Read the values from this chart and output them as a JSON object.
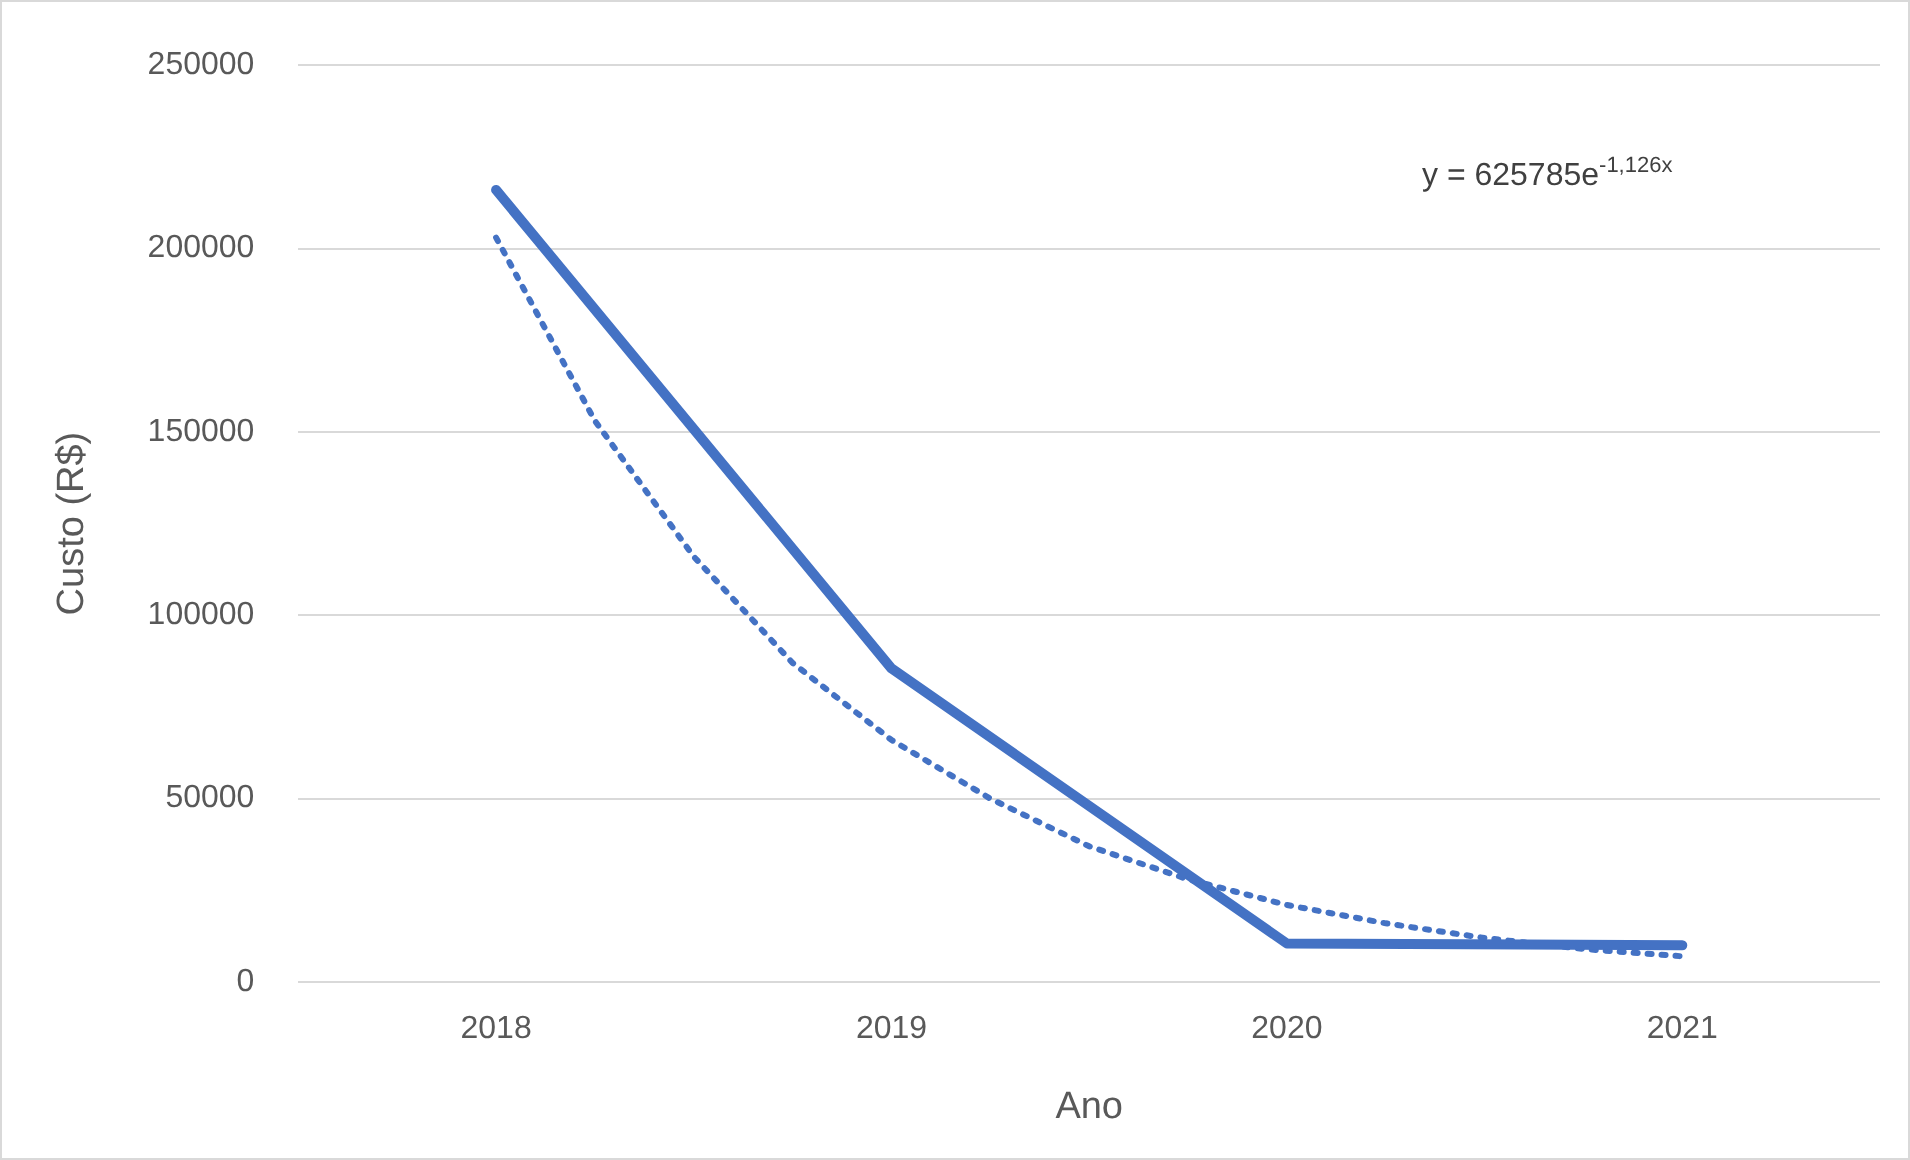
{
  "chart_data": {
    "type": "line",
    "xlabel": "Ano",
    "ylabel": "Custo (R$)",
    "x": [
      2018,
      2019,
      2020,
      2021
    ],
    "xlim": [
      2017.5,
      2021.5
    ],
    "xticks": [
      2018,
      2019,
      2020,
      2021
    ],
    "ylim": [
      0,
      250000
    ],
    "yticks": [
      0,
      50000,
      100000,
      150000,
      200000,
      250000
    ],
    "grid": "y",
    "legend": false,
    "marker": "none",
    "series": [
      {
        "color": "#4472c4",
        "values": [
          216000,
          85500,
          10500,
          10000
        ],
        "line_style": "solid"
      },
      {
        "color": "#4472c4",
        "line_style": "dotted",
        "x": [
          2018,
          2018.25,
          2018.5,
          2018.75,
          2019,
          2019.25,
          2019.5,
          2019.75,
          2020,
          2020.25,
          2020.5,
          2020.75,
          2021
        ],
        "values": [
          203000,
          153000,
          116000,
          87000,
          66000,
          50000,
          37000,
          28000,
          21000,
          16000,
          12000,
          9000,
          7000
        ]
      }
    ],
    "annotations": [
      "y = 625785e$^{-1,126x}$"
    ]
  }
}
